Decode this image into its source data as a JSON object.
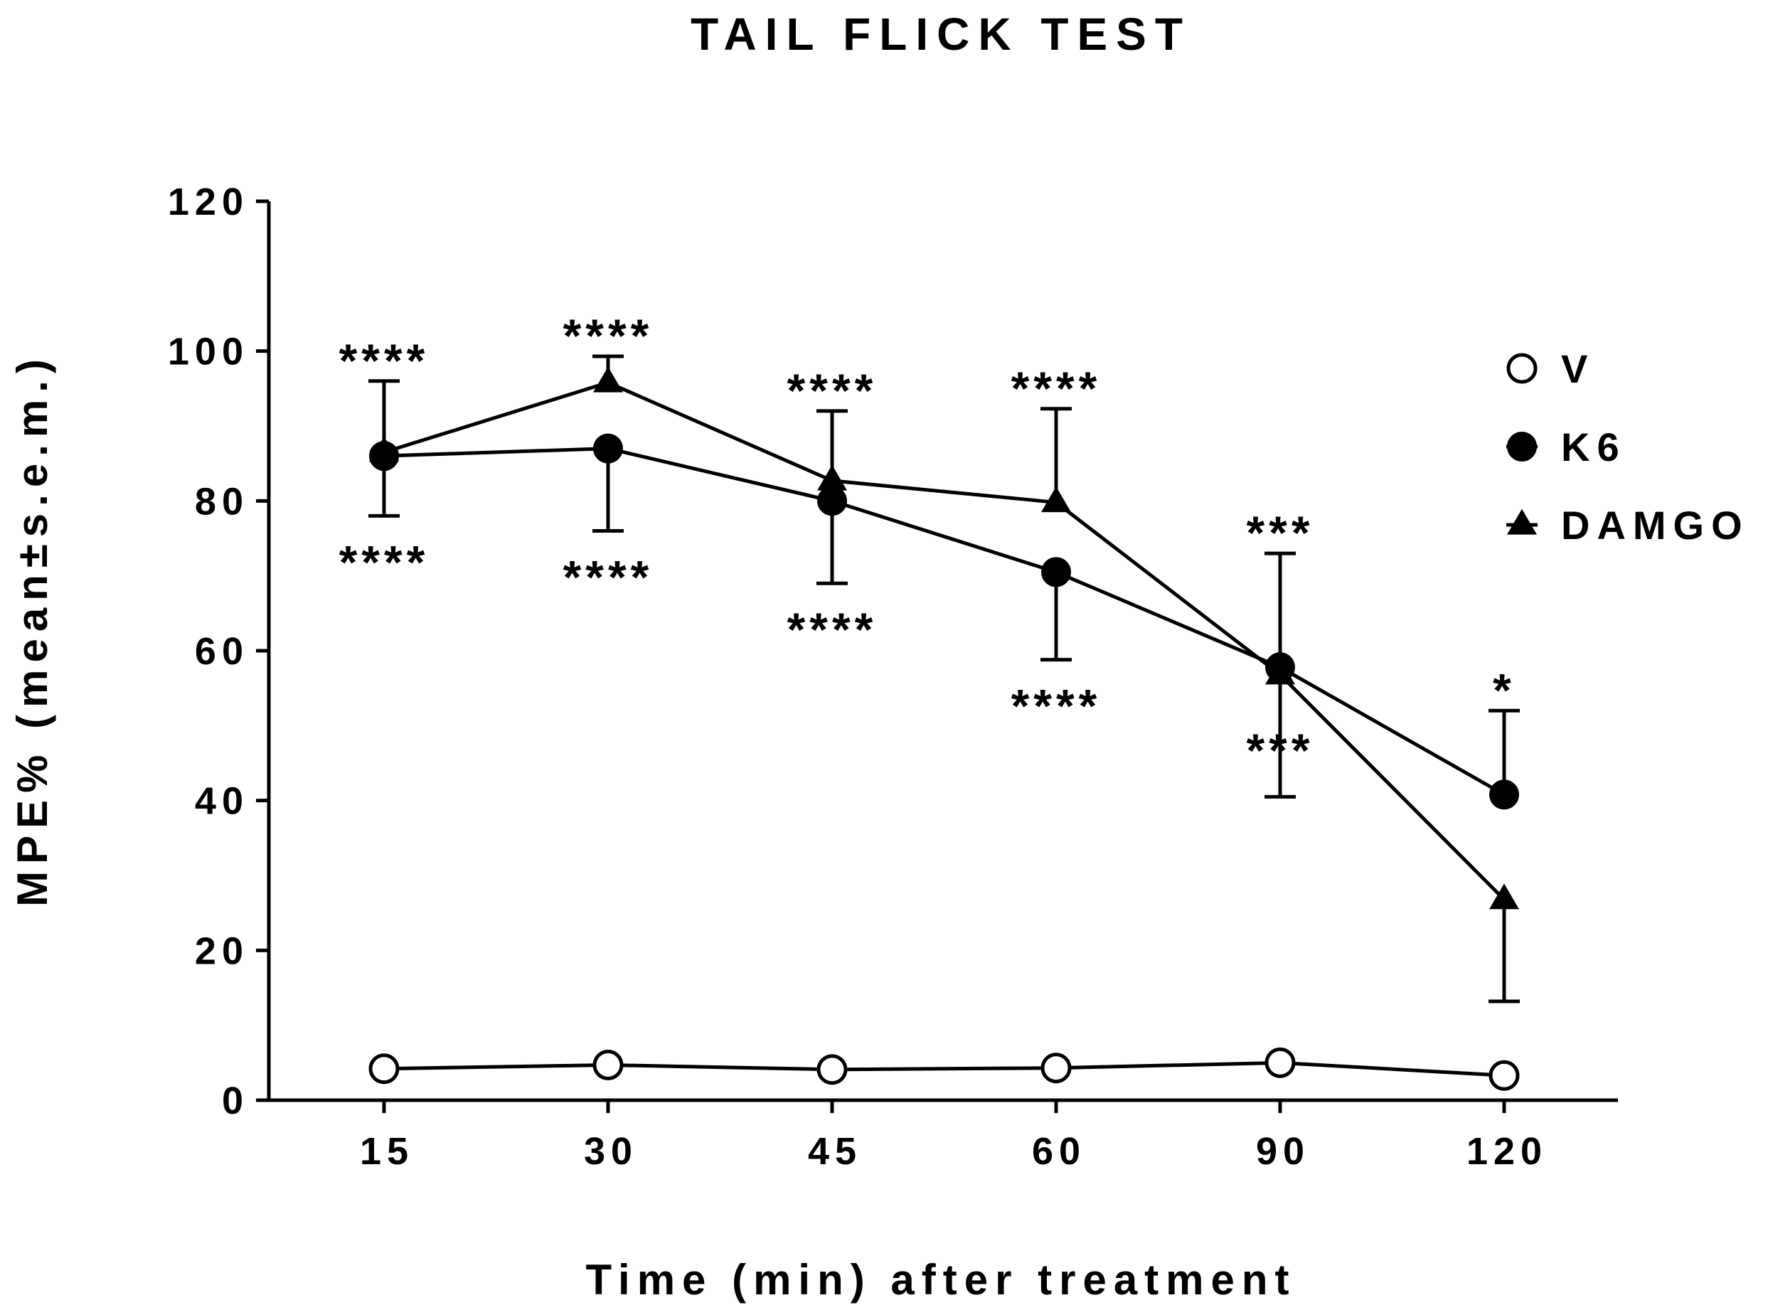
{
  "chart_data": {
    "type": "line",
    "title": "TAIL FLICK TEST",
    "xlabel": "Time (min) after treatment",
    "ylabel": "MPE% (mean±s.e.m.)",
    "categories": [
      "15",
      "30",
      "45",
      "60",
      "90",
      "120"
    ],
    "ylim": [
      0,
      120
    ],
    "yticks": [
      0,
      20,
      40,
      60,
      80,
      100,
      120
    ],
    "grid": false,
    "legend_position": "top-right",
    "series": [
      {
        "name": "V",
        "marker": "open-circle",
        "values": [
          4.2,
          4.7,
          4.1,
          4.3,
          5.0,
          3.3
        ],
        "error_upper": [
          null,
          null,
          null,
          null,
          null,
          null
        ],
        "error_lower": [
          null,
          null,
          null,
          null,
          null,
          null
        ]
      },
      {
        "name": "K6",
        "marker": "filled-circle",
        "values": [
          86,
          87,
          80,
          70.5,
          57.8,
          40.8
        ],
        "error_upper": [
          null,
          null,
          null,
          null,
          null,
          52
        ],
        "error_lower": [
          78,
          76,
          69,
          58.8,
          null,
          null
        ],
        "significance_below": [
          "****",
          "****",
          "****",
          "****",
          "***",
          ""
        ],
        "significance_above": [
          "",
          "",
          "",
          "",
          "",
          "*"
        ]
      },
      {
        "name": "DAMGO",
        "marker": "filled-triangle",
        "values": [
          86.5,
          95.8,
          82.7,
          79.8,
          56.8,
          26.8
        ],
        "error_upper": [
          96,
          99.3,
          92,
          92.3,
          73,
          null
        ],
        "error_lower": [
          null,
          null,
          null,
          null,
          40.5,
          13.2
        ],
        "significance_above": [
          "****",
          "****",
          "****",
          "****",
          "***",
          ""
        ]
      }
    ]
  }
}
